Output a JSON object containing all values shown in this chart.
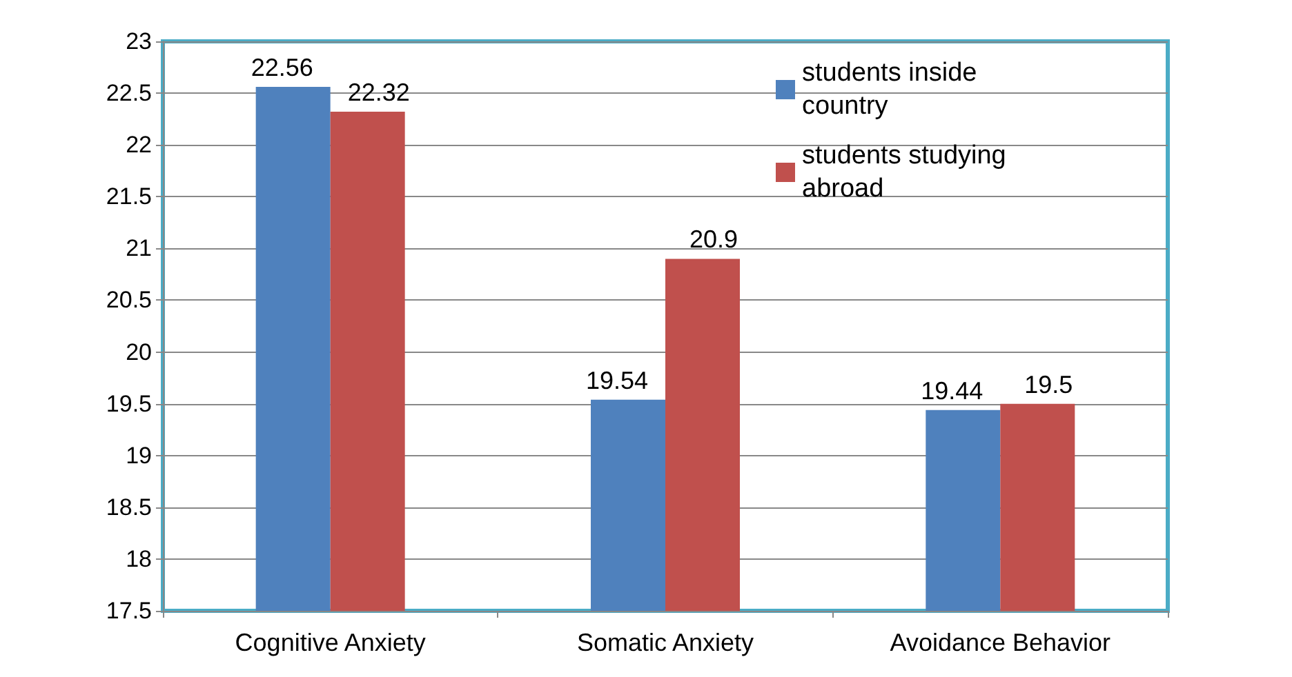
{
  "chart_data": {
    "type": "bar",
    "categories": [
      "Cognitive Anxiety",
      "Somatic Anxiety",
      "Avoidance Behavior"
    ],
    "series": [
      {
        "name": "students inside country",
        "color": "#4f81bd",
        "values": [
          22.56,
          19.54,
          19.44
        ]
      },
      {
        "name": "students studying abroad",
        "color": "#c0504d",
        "values": [
          22.32,
          20.9,
          19.5
        ]
      }
    ],
    "ylim": [
      17.5,
      23
    ],
    "yticks": [
      17.5,
      18,
      18.5,
      19,
      19.5,
      20,
      20.5,
      21,
      21.5,
      22,
      22.5,
      23
    ],
    "grid": "y",
    "legend": "top right",
    "data_labels": true
  }
}
